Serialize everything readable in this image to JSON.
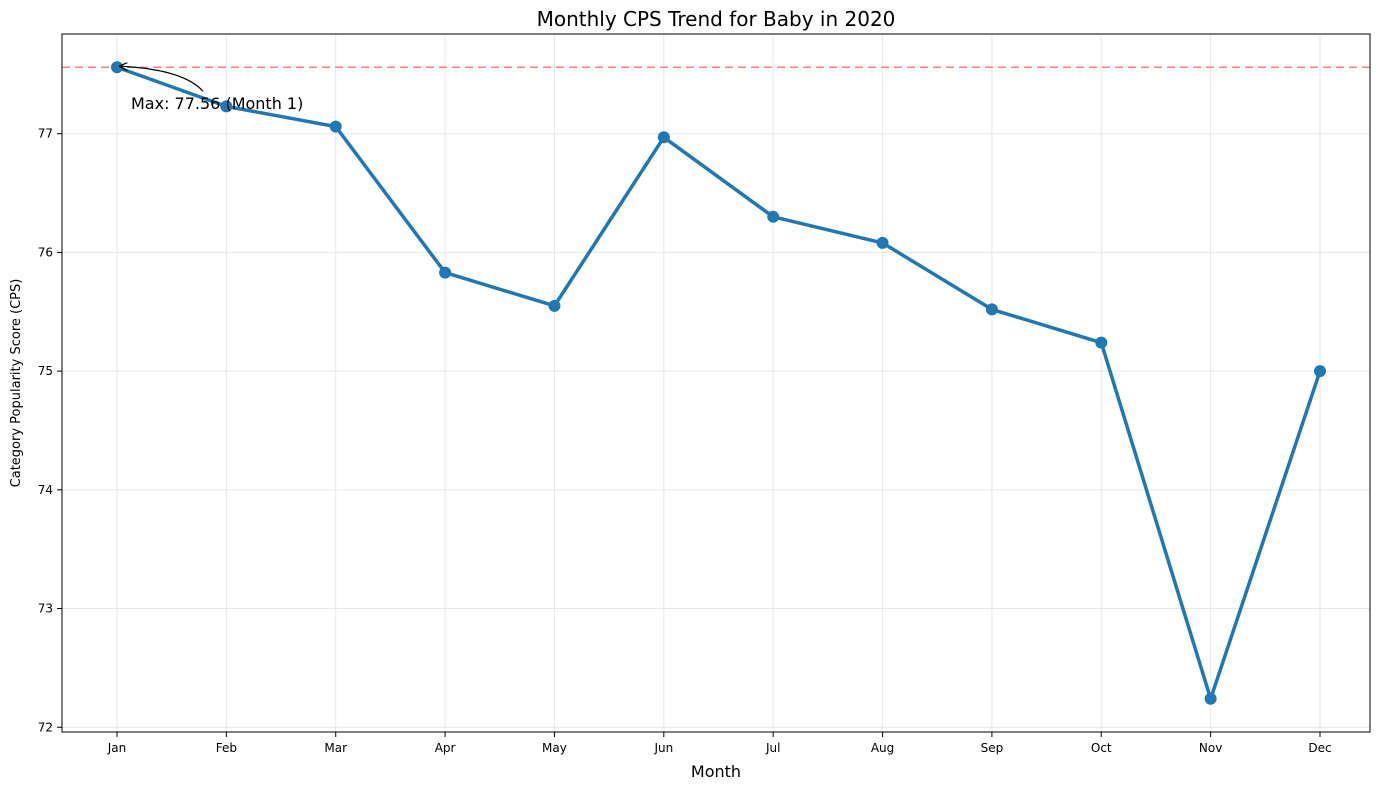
{
  "chart_data": {
    "type": "line",
    "title": "Monthly CPS Trend for Baby in 2020",
    "xlabel": "Month",
    "ylabel": "Category Popularity Score (CPS)",
    "categories": [
      "Jan",
      "Feb",
      "Mar",
      "Apr",
      "May",
      "Jun",
      "Jul",
      "Aug",
      "Sep",
      "Oct",
      "Nov",
      "Dec"
    ],
    "series": [
      {
        "values": [
          77.56,
          77.23,
          77.06,
          75.83,
          75.55,
          76.97,
          76.3,
          76.08,
          75.52,
          75.24,
          72.24,
          75.0
        ]
      }
    ],
    "ylim": [
      71.96,
      77.84
    ],
    "yticks": [
      72,
      73,
      74,
      75,
      76,
      77
    ],
    "max_line": {
      "value": 77.56,
      "color": "#ff7f7f",
      "style": "dashed"
    },
    "annotation": {
      "text": "Max: 77.56 (Month 1)",
      "point_index": 0
    },
    "grid": true,
    "colors": {
      "line": "#1f77b4",
      "grid": "#e6e6e6",
      "axis": "#000000"
    }
  }
}
